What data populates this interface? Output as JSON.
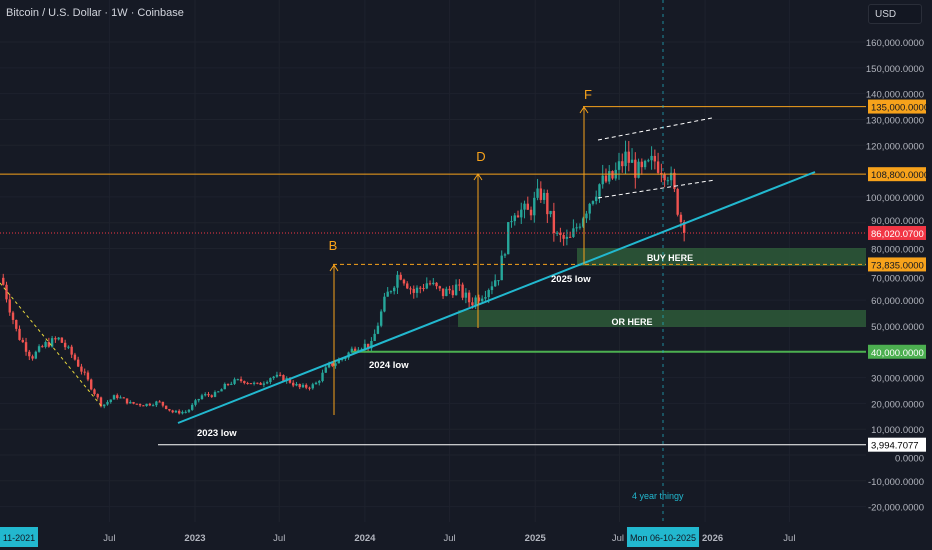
{
  "header": {
    "title": "Bitcoin / U.S. Dollar · 1W · Coinbase",
    "currency": "USD"
  },
  "chart_data": {
    "type": "candlestick",
    "title": "Bitcoin / U.S. Dollar · 1W · Coinbase",
    "ylim": [
      -25000,
      170000
    ],
    "y_ticks": [
      "160,000.0000",
      "150,000.0000",
      "140,000.0000",
      "130,000.0000",
      "120,000.0000",
      "100,000.0000",
      "90,000.0000",
      "80,000.0000",
      "70,000.0000",
      "60,000.0000",
      "50,000.0000",
      "30,000.0000",
      "20,000.0000",
      "10,000.0000",
      "0.0000",
      "-10,000.0000",
      "-20,000.0000"
    ],
    "y_tick_values": [
      160000,
      150000,
      140000,
      130000,
      120000,
      100000,
      90000,
      80000,
      70000,
      60000,
      50000,
      30000,
      20000,
      10000,
      0,
      -10000,
      -20000
    ],
    "x_ticks": [
      "Jul",
      "2023",
      "Jul",
      "2024",
      "Jul",
      "2025",
      "Jul",
      "2026",
      "Jul"
    ],
    "x_tick_dates": [
      "2022-07-01",
      "2023-01-01",
      "2023-07-01",
      "2024-01-01",
      "2024-07-01",
      "2025-01-01",
      "2025-07-01",
      "2026-01-01",
      "2026-07-01"
    ],
    "x_start_label": "11-2021",
    "crosshair_date_label": "Mon 06-10-2025",
    "x": [
      "2021-11-15",
      "2021-12-15",
      "2022-01-15",
      "2022-02-15",
      "2022-03-15",
      "2022-04-15",
      "2022-05-15",
      "2022-06-15",
      "2022-07-15",
      "2022-08-15",
      "2022-09-15",
      "2022-10-15",
      "2022-11-15",
      "2022-12-15",
      "2023-01-15",
      "2023-02-15",
      "2023-03-15",
      "2023-04-15",
      "2023-05-15",
      "2023-06-15",
      "2023-07-15",
      "2023-08-15",
      "2023-09-15",
      "2023-10-15",
      "2023-11-15",
      "2023-12-15",
      "2024-01-15",
      "2024-02-15",
      "2024-03-15",
      "2024-04-15",
      "2024-05-15",
      "2024-06-15",
      "2024-07-15",
      "2024-08-15",
      "2024-09-15",
      "2024-10-15",
      "2024-11-15",
      "2024-12-15",
      "2025-01-15",
      "2025-02-15",
      "2025-03-15",
      "2025-04-15",
      "2025-05-15",
      "2025-06-15",
      "2025-07-15",
      "2025-08-15",
      "2025-09-15",
      "2025-10-15",
      "2025-11-17"
    ],
    "close": [
      66000,
      47000,
      38000,
      43000,
      45000,
      38000,
      29000,
      19000,
      23000,
      20000,
      19500,
      20500,
      16500,
      16800,
      23000,
      23500,
      28000,
      29000,
      27000,
      30500,
      29500,
      26000,
      27000,
      34500,
      37500,
      42500,
      42500,
      61000,
      71000,
      63000,
      67000,
      62500,
      65000,
      59000,
      63500,
      70000,
      96000,
      93500,
      102000,
      84500,
      82500,
      94000,
      104500,
      107000,
      115500,
      108500,
      114000,
      109500,
      86020
    ],
    "price_labels": [
      {
        "text": "135,000.0000",
        "value": 135000,
        "color": "#f7a21b"
      },
      {
        "text": "108,800.0000",
        "value": 108800,
        "color": "#f7a21b"
      },
      {
        "text": "86,020.0700",
        "value": 86020.07,
        "color": "#f23645"
      },
      {
        "text": "73,835.0000",
        "value": 73835,
        "color": "#f7a21b"
      },
      {
        "text": "40,000.0000",
        "value": 40000,
        "color": "#4caf50"
      },
      {
        "text": "3,994.7077",
        "value": 3994.7077,
        "color": "#ffffff"
      }
    ],
    "annotations": {
      "B": "B",
      "D": "D",
      "F": "F",
      "low_2023": "2023 low",
      "low_2024": "2024 low",
      "low_2025": "2025 low",
      "buy_here": "BUY HERE",
      "or_here": "OR HERE",
      "four_year": "4 year thingy"
    },
    "colors": {
      "up": "#26a69a",
      "down": "#ef5350",
      "trend": "#22b8cf",
      "level": "#f7a21b",
      "zone": "#2e5e3a",
      "support": "#4caf50"
    }
  }
}
